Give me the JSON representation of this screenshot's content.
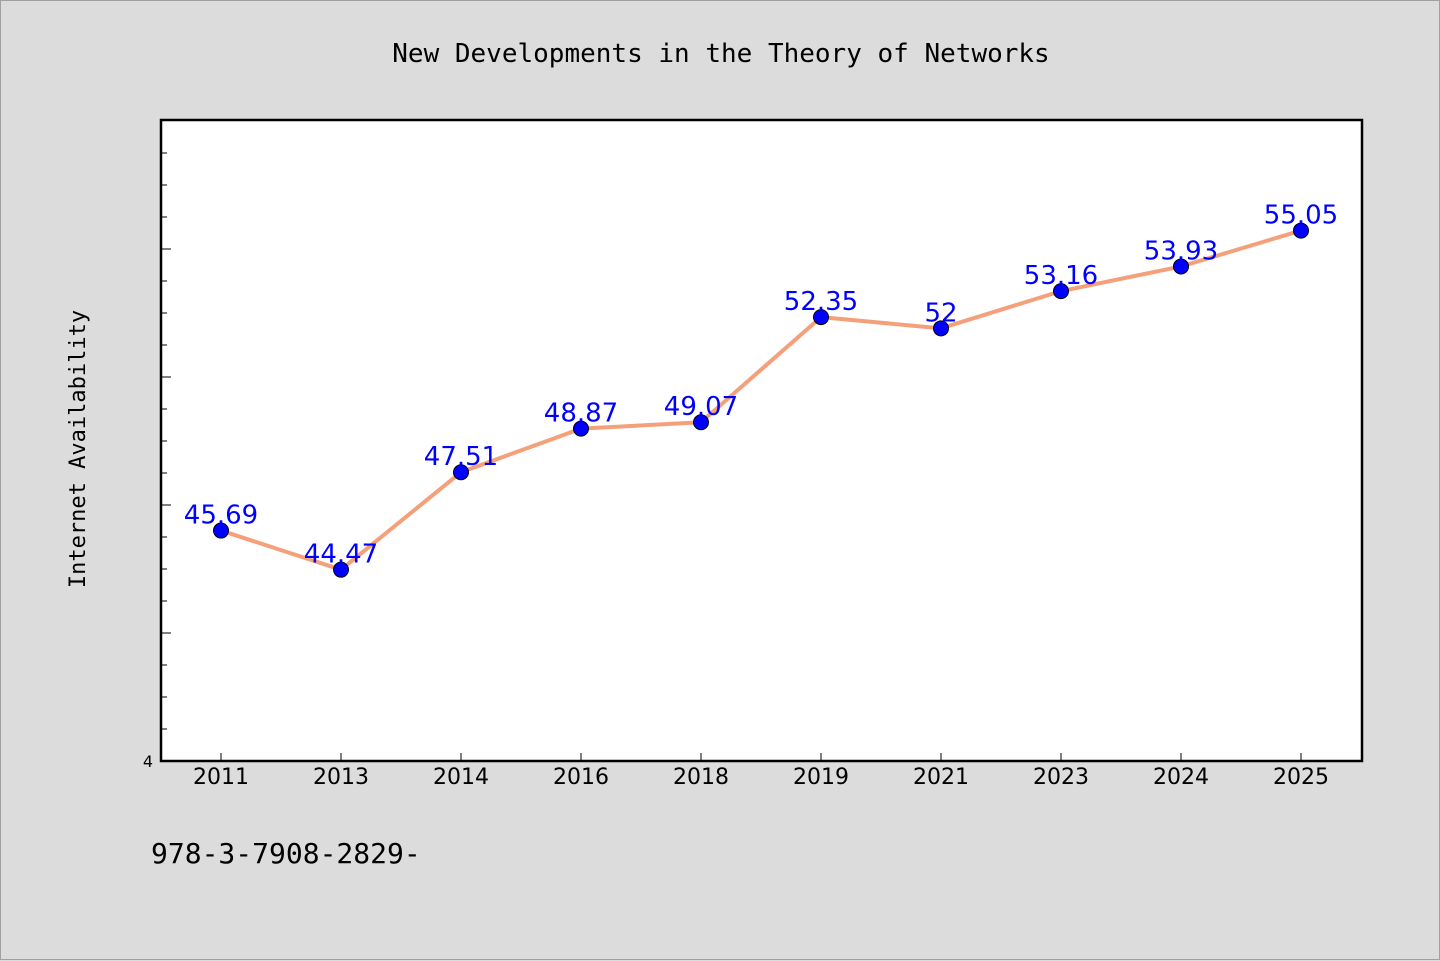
{
  "chart_data": {
    "type": "line",
    "title": "New Developments in the Theory of Networks",
    "xlabel": "",
    "ylabel": "Internet Availability",
    "categories": [
      "2011",
      "2013",
      "2014",
      "2016",
      "2018",
      "2019",
      "2021",
      "2023",
      "2024",
      "2025"
    ],
    "series": [
      {
        "values": [
          45.69,
          44.47,
          47.51,
          48.87,
          49.07,
          52.35,
          52,
          53.16,
          53.93,
          55.05
        ],
        "data_labels": [
          "45.69",
          "44.47",
          "47.51",
          "48.87",
          "49.07",
          "52.35",
          "52",
          "53.16",
          "53.93",
          "55.05"
        ],
        "line_color": "#f4a07a",
        "marker_color": "#0000ff"
      }
    ],
    "ylim": [
      38.5,
      58.5
    ],
    "y_tick_labels": [
      {
        "value": 38.5,
        "label": "4"
      }
    ],
    "grid": false,
    "legend": false
  },
  "footer": {
    "text": "978-3-7908-2829-"
  }
}
